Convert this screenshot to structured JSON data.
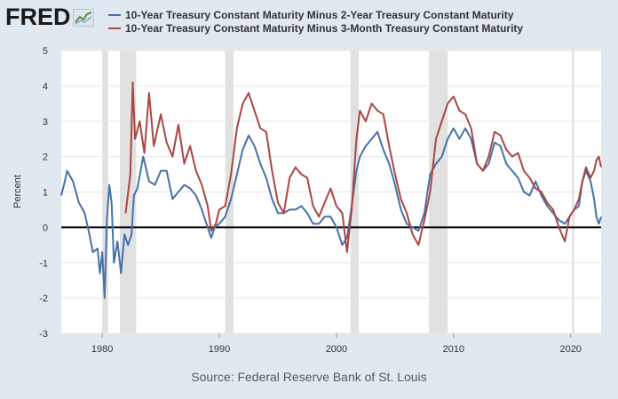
{
  "header": {
    "logo_text": "FRED"
  },
  "source_text": "Source: Federal Reserve Bank of St. Louis",
  "chart_data": {
    "type": "line",
    "title": "",
    "xlabel": "",
    "ylabel": "Percent",
    "xlim": [
      1976.5,
      2022.6
    ],
    "ylim": [
      -3,
      5
    ],
    "yticks": [
      -3,
      -2,
      -1,
      0,
      1,
      2,
      3,
      4,
      5
    ],
    "xticks": [
      1980,
      1990,
      2000,
      2010,
      2020
    ],
    "grid": "horizontal",
    "legend": "top",
    "zero_line": true,
    "recessions": [
      [
        1980.0,
        1980.5
      ],
      [
        1981.5,
        1982.9
      ],
      [
        1990.5,
        1991.2
      ],
      [
        2001.2,
        2001.9
      ],
      [
        2007.9,
        2009.5
      ],
      [
        2020.1,
        2020.3
      ]
    ],
    "series": [
      {
        "name": "10-Year Treasury Constant Maturity Minus 2-Year Treasury Constant Maturity",
        "color": "#4572a7",
        "x": [
          1976.5,
          1976.8,
          1977.0,
          1977.5,
          1978.0,
          1978.5,
          1978.9,
          1979.2,
          1979.6,
          1979.8,
          1980.0,
          1980.2,
          1980.4,
          1980.6,
          1980.8,
          1981.0,
          1981.3,
          1981.6,
          1981.9,
          1982.2,
          1982.5,
          1982.7,
          1983.0,
          1983.5,
          1984.0,
          1984.5,
          1985.0,
          1985.5,
          1986.0,
          1986.5,
          1987.0,
          1987.5,
          1988.0,
          1988.5,
          1989.0,
          1989.3,
          1989.6,
          1990.0,
          1990.5,
          1991.0,
          1991.5,
          1992.0,
          1992.5,
          1993.0,
          1993.5,
          1994.0,
          1994.5,
          1995.0,
          1995.5,
          1996.0,
          1996.5,
          1997.0,
          1997.5,
          1998.0,
          1998.5,
          1999.0,
          1999.5,
          2000.0,
          2000.5,
          2000.9,
          2001.3,
          2001.7,
          2002.0,
          2002.5,
          2003.0,
          2003.5,
          2004.0,
          2004.5,
          2005.0,
          2005.5,
          2006.0,
          2006.5,
          2007.0,
          2007.5,
          2008.0,
          2008.5,
          2009.0,
          2009.5,
          2010.0,
          2010.5,
          2011.0,
          2011.5,
          2012.0,
          2012.5,
          2013.0,
          2013.5,
          2014.0,
          2014.5,
          2015.0,
          2015.5,
          2016.0,
          2016.5,
          2017.0,
          2017.5,
          2018.0,
          2018.5,
          2019.0,
          2019.5,
          2019.9,
          2020.3,
          2020.7,
          2021.0,
          2021.3,
          2021.7,
          2022.0,
          2022.2,
          2022.4,
          2022.6
        ],
        "values": [
          0.9,
          1.3,
          1.6,
          1.3,
          0.7,
          0.4,
          -0.2,
          -0.7,
          -0.6,
          -1.3,
          -0.7,
          -2.0,
          0.2,
          1.2,
          0.7,
          -1.0,
          -0.4,
          -1.3,
          -0.2,
          -0.5,
          -0.2,
          0.9,
          1.1,
          2.0,
          1.3,
          1.2,
          1.6,
          1.6,
          0.8,
          1.0,
          1.2,
          1.1,
          0.9,
          0.5,
          0.0,
          -0.3,
          0.0,
          0.1,
          0.3,
          0.8,
          1.5,
          2.2,
          2.6,
          2.3,
          1.8,
          1.4,
          0.8,
          0.4,
          0.4,
          0.5,
          0.5,
          0.6,
          0.4,
          0.1,
          0.1,
          0.3,
          0.3,
          0.0,
          -0.5,
          -0.3,
          0.6,
          1.6,
          2.0,
          2.3,
          2.5,
          2.7,
          2.2,
          1.8,
          1.2,
          0.5,
          0.1,
          0.0,
          -0.1,
          0.4,
          1.5,
          1.8,
          2.0,
          2.5,
          2.8,
          2.5,
          2.8,
          2.5,
          1.8,
          1.6,
          1.8,
          2.4,
          2.3,
          1.8,
          1.6,
          1.4,
          1.0,
          0.9,
          1.3,
          0.9,
          0.6,
          0.4,
          0.2,
          0.1,
          0.3,
          0.5,
          0.6,
          1.3,
          1.6,
          1.3,
          0.8,
          0.3,
          0.1,
          0.3
        ]
      },
      {
        "name": "10-Year Treasury Constant Maturity Minus 3-Month Treasury Constant Maturity",
        "color": "#aa4643",
        "x": [
          1982.0,
          1982.4,
          1982.6,
          1982.8,
          1983.2,
          1983.6,
          1984.0,
          1984.4,
          1985.0,
          1985.5,
          1986.0,
          1986.5,
          1987.0,
          1987.5,
          1988.0,
          1988.5,
          1989.0,
          1989.3,
          1989.7,
          1990.0,
          1990.5,
          1991.0,
          1991.5,
          1992.0,
          1992.5,
          1993.0,
          1993.5,
          1994.0,
          1994.5,
          1995.0,
          1995.5,
          1996.0,
          1996.5,
          1997.0,
          1997.5,
          1998.0,
          1998.5,
          1999.0,
          1999.5,
          2000.0,
          2000.5,
          2000.9,
          2001.3,
          2001.7,
          2002.0,
          2002.5,
          2003.0,
          2003.5,
          2004.0,
          2004.5,
          2005.0,
          2005.5,
          2006.0,
          2006.5,
          2007.0,
          2007.5,
          2008.0,
          2008.5,
          2009.0,
          2009.5,
          2010.0,
          2010.5,
          2011.0,
          2011.5,
          2012.0,
          2012.5,
          2013.0,
          2013.5,
          2014.0,
          2014.5,
          2015.0,
          2015.5,
          2016.0,
          2016.5,
          2017.0,
          2017.5,
          2018.0,
          2018.5,
          2019.0,
          2019.5,
          2019.9,
          2020.3,
          2020.7,
          2021.0,
          2021.3,
          2021.7,
          2022.0,
          2022.2,
          2022.4,
          2022.6
        ],
        "values": [
          0.4,
          1.5,
          4.1,
          2.5,
          3.0,
          2.1,
          3.8,
          2.3,
          3.2,
          2.4,
          2.0,
          2.9,
          1.8,
          2.3,
          1.6,
          1.2,
          0.6,
          -0.1,
          0.1,
          0.5,
          0.6,
          1.5,
          2.8,
          3.5,
          3.8,
          3.3,
          2.8,
          2.7,
          1.6,
          0.7,
          0.4,
          1.4,
          1.7,
          1.5,
          1.4,
          0.6,
          0.3,
          0.7,
          1.1,
          0.6,
          0.4,
          -0.7,
          0.5,
          2.5,
          3.3,
          3.0,
          3.5,
          3.3,
          3.2,
          2.3,
          1.5,
          0.8,
          0.4,
          -0.2,
          -0.5,
          0.2,
          1.0,
          2.5,
          3.0,
          3.5,
          3.7,
          3.3,
          3.2,
          2.8,
          1.8,
          1.6,
          2.0,
          2.7,
          2.6,
          2.2,
          2.0,
          2.1,
          1.6,
          1.4,
          1.1,
          1.0,
          0.7,
          0.5,
          0.0,
          -0.4,
          0.3,
          0.5,
          0.8,
          1.3,
          1.7,
          1.4,
          1.6,
          1.9,
          2.0,
          1.7
        ]
      }
    ]
  }
}
